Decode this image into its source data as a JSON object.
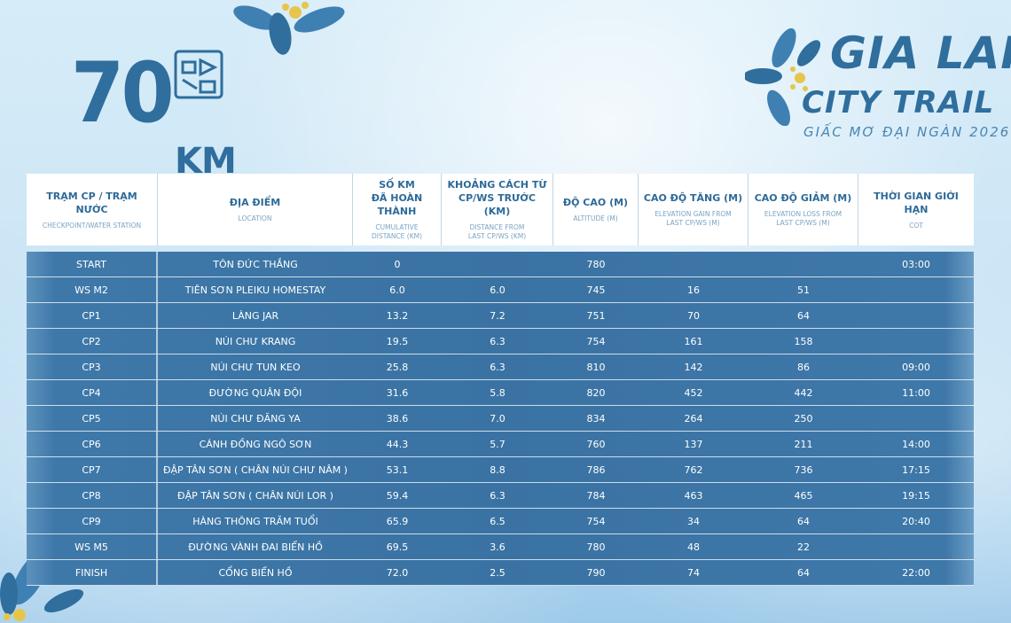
{
  "distance": {
    "number": "70",
    "unit": "KM"
  },
  "event": {
    "line1": "GIA LAI",
    "line2": "CITY TRAIL",
    "line3": "GIẤC MƠ ĐẠI NGÀN 2026"
  },
  "colors": {
    "primary": "#2f6e9d",
    "row": "#3a73a3",
    "header_bg": "#ffffff"
  },
  "headers": [
    {
      "main": "TRẠM CP / TRẠM NƯỚC",
      "sub": "CHECKPOINT/WATER STATION"
    },
    {
      "main": "ĐỊA ĐIỂM",
      "sub": "LOCATION"
    },
    {
      "main": "SỐ KM\nĐÃ HOÀN THÀNH",
      "sub": "CUMULATIVE\nDISTANCE (KM)"
    },
    {
      "main": "KHOẢNG CÁCH TỪ\nCP/WS TRƯỚC (KM)",
      "sub": "DISTANCE FROM\nLAST CP/WS (KM)"
    },
    {
      "main": "ĐỘ CAO (M)",
      "sub": "ALTITUDE (M)"
    },
    {
      "main": "CAO ĐỘ TĂNG (M)",
      "sub": "ELEVATION GAIN FROM\nLAST CP/WS (M)"
    },
    {
      "main": "CAO ĐỘ GIẢM (M)",
      "sub": "ELEVATION LOSS FROM\nLAST CP/WS (M)"
    },
    {
      "main": "THỜI GIAN GIỚI HẠN",
      "sub": "COT"
    }
  ],
  "rows": [
    {
      "station": "START",
      "location": "TÔN ĐỨC THẮNG",
      "cumulative": "0",
      "from_last": "",
      "altitude": "780",
      "gain": "",
      "loss": "",
      "cot": "03:00"
    },
    {
      "station": "WS M2",
      "location": "TIÊN SƠN PLEIKU HOMESTAY",
      "cumulative": "6.0",
      "from_last": "6.0",
      "altitude": "745",
      "gain": "16",
      "loss": "51",
      "cot": ""
    },
    {
      "station": "CP1",
      "location": "LÀNG JAR",
      "cumulative": "13.2",
      "from_last": "7.2",
      "altitude": "751",
      "gain": "70",
      "loss": "64",
      "cot": ""
    },
    {
      "station": "CP2",
      "location": "NÚI CHƯ KRANG",
      "cumulative": "19.5",
      "from_last": "6.3",
      "altitude": "754",
      "gain": "161",
      "loss": "158",
      "cot": ""
    },
    {
      "station": "CP3",
      "location": "NÚI CHƯ TUN KEO",
      "cumulative": "25.8",
      "from_last": "6.3",
      "altitude": "810",
      "gain": "142",
      "loss": "86",
      "cot": "09:00"
    },
    {
      "station": "CP4",
      "location": "ĐƯỜNG QUÂN ĐỘI",
      "cumulative": "31.6",
      "from_last": "5.8",
      "altitude": "820",
      "gain": "452",
      "loss": "442",
      "cot": "11:00"
    },
    {
      "station": "CP5",
      "location": "NÚI CHƯ ĐĂNG YA",
      "cumulative": "38.6",
      "from_last": "7.0",
      "altitude": "834",
      "gain": "264",
      "loss": "250",
      "cot": ""
    },
    {
      "station": "CP6",
      "location": "CÁNH ĐỒNG NGÔ SƠN",
      "cumulative": "44.3",
      "from_last": "5.7",
      "altitude": "760",
      "gain": "137",
      "loss": "211",
      "cot": "14:00"
    },
    {
      "station": "CP7",
      "location": "ĐẬP TÂN SƠN ( CHÂN NÚI CHƯ NÂM )",
      "cumulative": "53.1",
      "from_last": "8.8",
      "altitude": "786",
      "gain": "762",
      "loss": "736",
      "cot": "17:15"
    },
    {
      "station": "CP8",
      "location": "ĐẬP TÂN SƠN ( CHÂN NÚI LOR )",
      "cumulative": "59.4",
      "from_last": "6.3",
      "altitude": "784",
      "gain": "463",
      "loss": "465",
      "cot": "19:15"
    },
    {
      "station": "CP9",
      "location": "HÀNG THÔNG TRĂM TUỔI",
      "cumulative": "65.9",
      "from_last": "6.5",
      "altitude": "754",
      "gain": "34",
      "loss": "64",
      "cot": "20:40"
    },
    {
      "station": "WS M5",
      "location": "ĐƯỜNG VÀNH ĐAI BIỂN HỒ",
      "cumulative": "69.5",
      "from_last": "3.6",
      "altitude": "780",
      "gain": "48",
      "loss": "22",
      "cot": ""
    },
    {
      "station": "FINISH",
      "location": "CỔNG BIỂN HỒ",
      "cumulative": "72.0",
      "from_last": "2.5",
      "altitude": "790",
      "gain": "74",
      "loss": "64",
      "cot": "22:00"
    }
  ]
}
